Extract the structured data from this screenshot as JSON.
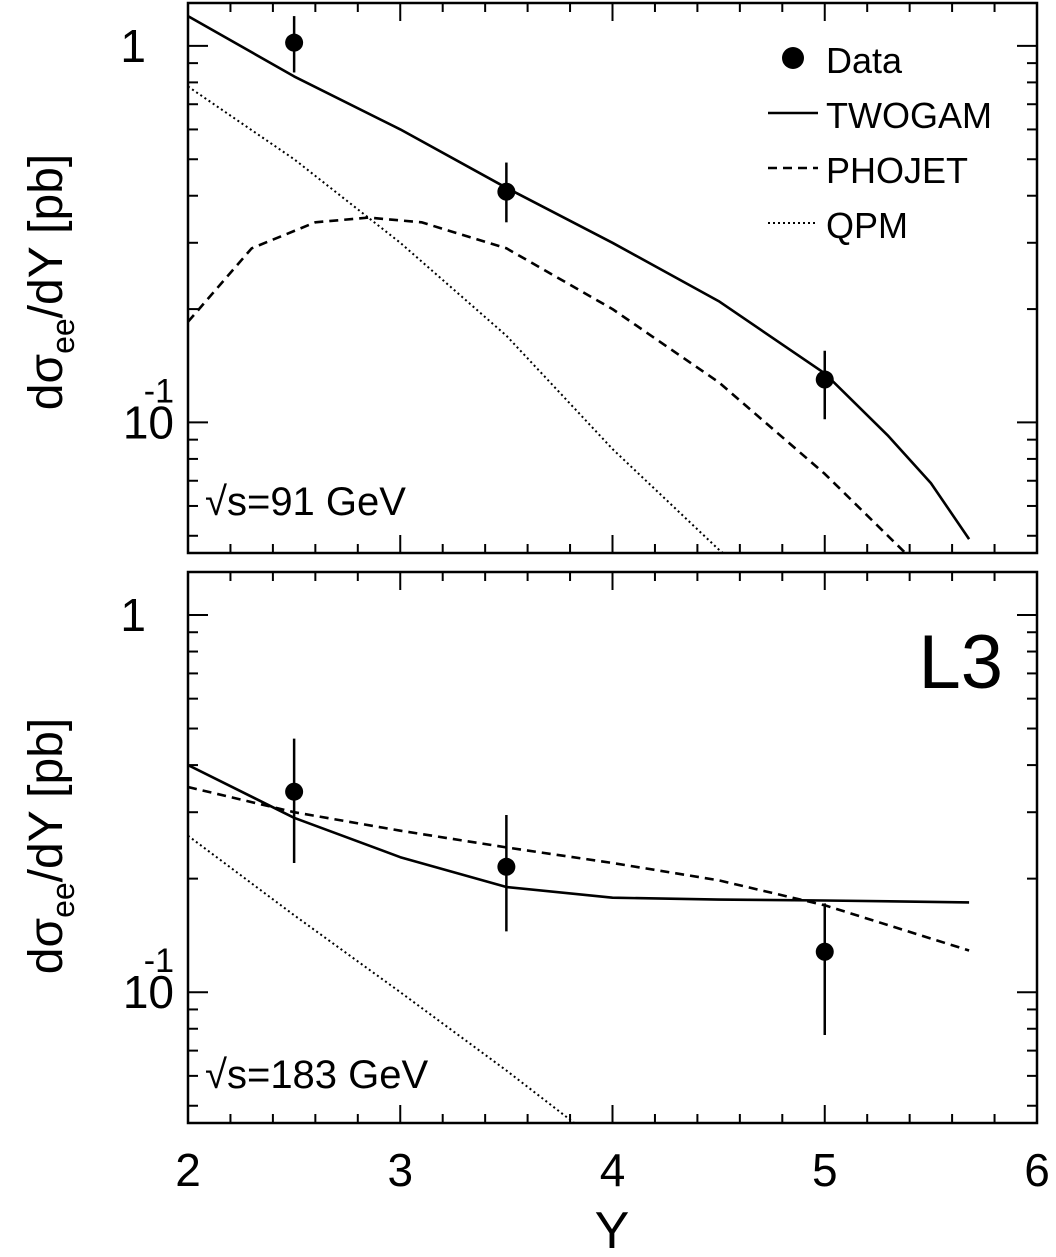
{
  "figure": {
    "experiment_label": "L3",
    "x_axis_label": "Y",
    "x_tick_labels": [
      "2",
      "3",
      "4",
      "5",
      "6"
    ]
  },
  "chart_data": [
    {
      "type": "line",
      "panel": "top",
      "annotation": "√s=91 GeV",
      "ylabel": "dσee/dY [pb]",
      "ylabel_parts": {
        "main": "dσ",
        "sub": "ee",
        "rest": "/dY [pb]"
      },
      "xlabel": "Y",
      "xlim": [
        2,
        6
      ],
      "ylim": [
        0.045,
        1.3
      ],
      "yscale": "log",
      "y_tick_labels": [
        {
          "value": 1,
          "main": "1",
          "sup": ""
        },
        {
          "value": 0.1,
          "main": "10",
          "sup": "-1"
        }
      ],
      "legend": {
        "placement": "top-right",
        "entries": [
          {
            "label": "Data",
            "style": "marker"
          },
          {
            "label": "TWOGAM",
            "style": "solid"
          },
          {
            "label": "PHOJET",
            "style": "dashed"
          },
          {
            "label": "QPM",
            "style": "dotted"
          }
        ]
      },
      "data_points": {
        "name": "Data",
        "x": [
          2.5,
          3.5,
          5.0
        ],
        "y": [
          1.02,
          0.41,
          0.13
        ],
        "yerr_low": [
          0.85,
          0.34,
          0.102
        ],
        "yerr_high": [
          1.2,
          0.49,
          0.155
        ]
      },
      "series": [
        {
          "name": "TWOGAM",
          "style": "solid",
          "x": [
            2.0,
            2.5,
            3.0,
            3.5,
            4.0,
            4.5,
            5.0,
            5.3,
            5.5,
            5.68
          ],
          "y": [
            1.2,
            0.83,
            0.6,
            0.42,
            0.3,
            0.21,
            0.135,
            0.092,
            0.069,
            0.049
          ]
        },
        {
          "name": "PHOJET",
          "style": "dashed",
          "x": [
            2.0,
            2.3,
            2.6,
            2.85,
            3.1,
            3.5,
            4.0,
            4.5,
            5.0,
            5.38
          ],
          "y": [
            0.185,
            0.29,
            0.34,
            0.35,
            0.34,
            0.29,
            0.2,
            0.128,
            0.073,
            0.045
          ]
        },
        {
          "name": "QPM",
          "style": "dotted",
          "x": [
            2.0,
            2.5,
            3.0,
            3.5,
            4.0,
            4.5,
            4.52
          ],
          "y": [
            0.78,
            0.5,
            0.3,
            0.17,
            0.085,
            0.046,
            0.045
          ]
        }
      ]
    },
    {
      "type": "line",
      "panel": "bottom",
      "annotation": "√s=183 GeV",
      "ylabel": "dσee/dY [pb]",
      "ylabel_parts": {
        "main": "dσ",
        "sub": "ee",
        "rest": "/dY [pb]"
      },
      "xlabel": "Y",
      "xlim": [
        2,
        6
      ],
      "ylim": [
        0.045,
        1.3
      ],
      "yscale": "log",
      "y_tick_labels": [
        {
          "value": 1,
          "main": "1",
          "sup": ""
        },
        {
          "value": 0.1,
          "main": "10",
          "sup": "-1"
        }
      ],
      "data_points": {
        "name": "Data",
        "x": [
          2.5,
          3.5,
          5.0
        ],
        "y": [
          0.34,
          0.215,
          0.128
        ],
        "yerr_low": [
          0.22,
          0.145,
          0.077
        ],
        "yerr_high": [
          0.47,
          0.295,
          0.172
        ]
      },
      "series": [
        {
          "name": "TWOGAM",
          "style": "solid",
          "x": [
            2.0,
            2.5,
            3.0,
            3.5,
            4.0,
            4.5,
            5.0,
            5.68
          ],
          "y": [
            0.4,
            0.29,
            0.228,
            0.19,
            0.178,
            0.176,
            0.175,
            0.173
          ]
        },
        {
          "name": "PHOJET",
          "style": "dashed",
          "x": [
            2.0,
            2.5,
            3.0,
            3.5,
            4.0,
            4.5,
            5.0,
            5.68
          ],
          "y": [
            0.35,
            0.3,
            0.268,
            0.242,
            0.22,
            0.198,
            0.17,
            0.129
          ]
        },
        {
          "name": "QPM",
          "style": "dotted",
          "x": [
            2.0,
            2.5,
            3.0,
            3.5,
            3.82
          ],
          "y": [
            0.26,
            0.16,
            0.1,
            0.062,
            0.045
          ]
        }
      ]
    }
  ]
}
